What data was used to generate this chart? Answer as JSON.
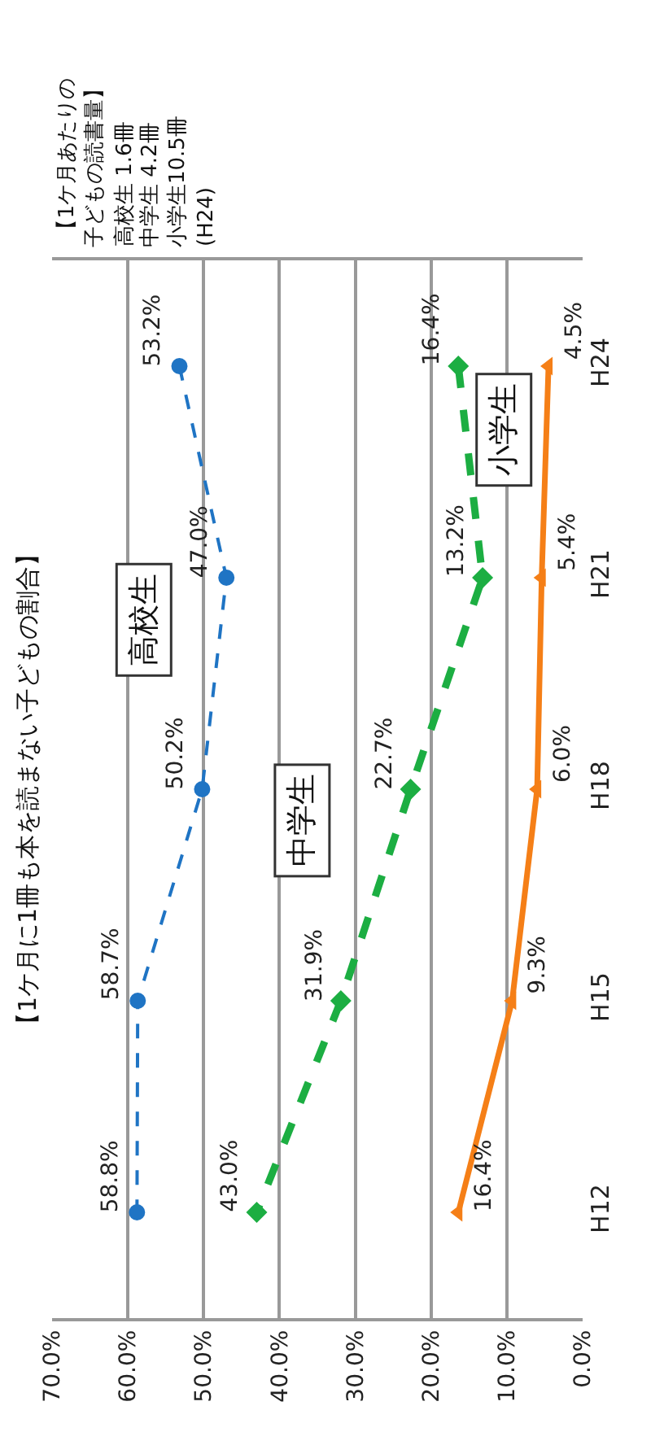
{
  "chart_data": {
    "type": "line",
    "title": "【1ケ月に1冊も本を読まない子どもの割合】",
    "annotations": [
      "【1ケ月あたりの子どもの読書量】",
      "高校生 1.6冊",
      "中学生 4.2冊",
      "小学生10.5冊",
      "(H24)"
    ],
    "categories": [
      "H24",
      "H21",
      "H18",
      "H15",
      "H12"
    ],
    "orientation": "horizontal",
    "series": [
      {
        "name": "高校生",
        "color": "#1f74c4",
        "values": [
          53.2,
          47.0,
          50.2,
          58.7,
          58.8
        ],
        "value_labels": [
          "53.2%",
          "47.0%",
          "50.2%",
          "58.7%",
          "58.8%"
        ],
        "marker": "circle",
        "line_style": "dashed"
      },
      {
        "name": "中学生",
        "color": "#1cae42",
        "values": [
          16.4,
          13.2,
          22.7,
          31.9,
          43.0
        ],
        "value_labels": [
          "16.4%",
          "13.2%",
          "22.7%",
          "31.9%",
          "43.0%"
        ],
        "marker": "diamond",
        "line_style": "dashed"
      },
      {
        "name": "小学生",
        "color": "#f57f17",
        "values": [
          4.5,
          5.4,
          6.0,
          9.3,
          16.4
        ],
        "value_labels": [
          "4.5%",
          "5.4%",
          "6.0%",
          "9.3%",
          "16.4%"
        ],
        "marker": "triangle",
        "line_style": "solid"
      }
    ],
    "xlim": [
      70,
      0
    ],
    "xticks": [
      {
        "value": 70,
        "label": "70.0%"
      },
      {
        "value": 60,
        "label": "60.0%"
      },
      {
        "value": 50,
        "label": "50.0%"
      },
      {
        "value": 40,
        "label": "40.0%"
      },
      {
        "value": 30,
        "label": "30.0%"
      },
      {
        "value": 20,
        "label": "20.0%"
      },
      {
        "value": 10,
        "label": "10.0%"
      },
      {
        "value": 0,
        "label": "0.0%"
      }
    ],
    "grid": "x",
    "legend": false
  }
}
